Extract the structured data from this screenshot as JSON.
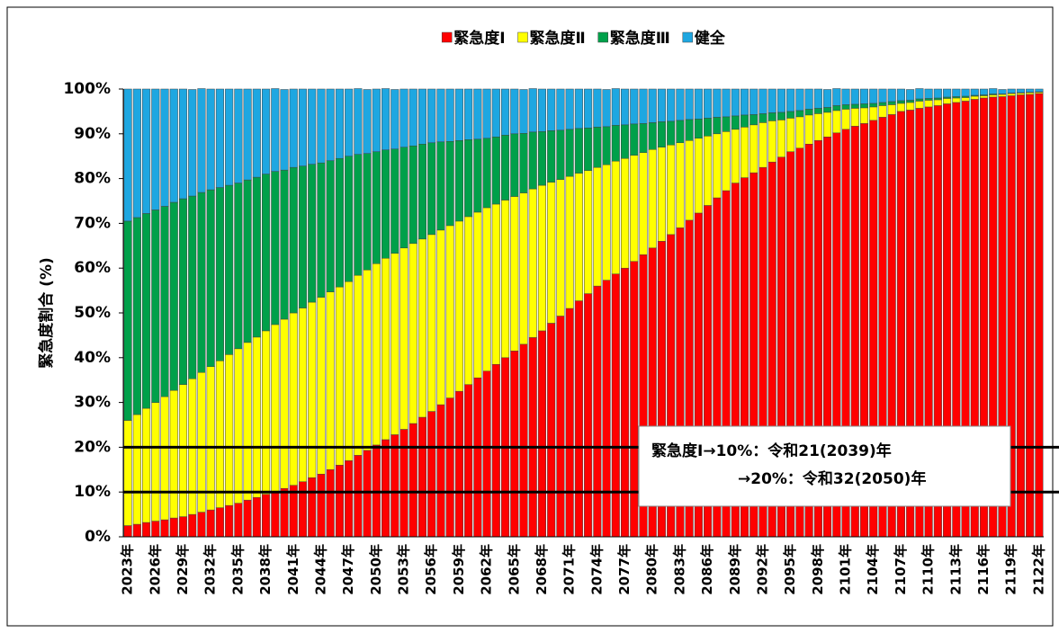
{
  "chart_data": {
    "type": "stacked-bar",
    "y_label": "緊急度割合 (%)",
    "categories": [
      "2023年",
      null,
      null,
      "2026年",
      null,
      null,
      "2029年",
      null,
      null,
      "2032年",
      null,
      null,
      "2035年",
      null,
      null,
      "2038年",
      null,
      null,
      "2041年",
      null,
      null,
      "2044年",
      null,
      null,
      "2047年",
      null,
      null,
      "2050年",
      null,
      null,
      "2053年",
      null,
      null,
      "2056年",
      null,
      null,
      "2059年",
      null,
      null,
      "2062年",
      null,
      null,
      "2065年",
      null,
      null,
      "2068年",
      null,
      null,
      "2071年",
      null,
      null,
      "2074年",
      null,
      null,
      "2077年",
      null,
      null,
      "2080年",
      null,
      null,
      "2083年",
      null,
      null,
      "2086年",
      null,
      null,
      "2089年",
      null,
      null,
      "2092年",
      null,
      null,
      "2095年",
      null,
      null,
      "2098年",
      null,
      null,
      "2101年",
      null,
      null,
      "2104年",
      null,
      null,
      "2107年",
      null,
      null,
      "2110年",
      null,
      null,
      "2113年",
      null,
      null,
      "2116年",
      null,
      null,
      "2119年",
      null,
      null,
      "2122年"
    ],
    "series": [
      {
        "name": "緊急度Ⅰ",
        "color": "#ff0000",
        "values": [
          2.5,
          2.8,
          3.2,
          3.5,
          3.8,
          4.2,
          4.5,
          5,
          5.5,
          6,
          6.5,
          7,
          7.5,
          8.2,
          8.8,
          9.5,
          10.2,
          10.8,
          11.5,
          12.3,
          13.2,
          14,
          15,
          16,
          17,
          18.2,
          19.3,
          20.5,
          21.7,
          22.8,
          24,
          25.3,
          26.7,
          28,
          29.5,
          31,
          32.5,
          34,
          35.5,
          37,
          38.5,
          40,
          41.5,
          43,
          44.5,
          46,
          47.7,
          49.3,
          51,
          52.7,
          54.3,
          56,
          57.3,
          58.7,
          60,
          61.5,
          63,
          64.5,
          66,
          67.5,
          69,
          70.7,
          72.3,
          74,
          75.7,
          77.3,
          79,
          80.2,
          81.3,
          82.5,
          83.7,
          84.8,
          86,
          86.8,
          87.7,
          88.5,
          89.3,
          90.2,
          91,
          91.7,
          92.3,
          93,
          93.7,
          94.3,
          95,
          95.3,
          95.7,
          96,
          96.3,
          96.7,
          97,
          97.3,
          97.7,
          98,
          98.2,
          98.3,
          98.5,
          98.7,
          98.8,
          99
        ]
      },
      {
        "name": "緊急度Ⅱ",
        "color": "#ffff00",
        "values": [
          23.5,
          24.5,
          25.5,
          26.5,
          27.5,
          28.5,
          29.5,
          30.3,
          31.2,
          32,
          32.8,
          33.7,
          34.5,
          35.2,
          35.8,
          36.5,
          37.2,
          37.8,
          38.5,
          38.8,
          39.2,
          39.5,
          39.7,
          39.8,
          40,
          40.2,
          40.3,
          40.5,
          40.5,
          40.5,
          40.5,
          40.2,
          39.8,
          39.5,
          39,
          38.5,
          38,
          37.5,
          37,
          36.5,
          35.8,
          35.2,
          34.5,
          33.8,
          33.2,
          32.5,
          31.5,
          30.5,
          29.5,
          28.5,
          27.5,
          26.5,
          25.8,
          25.2,
          24.5,
          23.7,
          22.8,
          22,
          21,
          20,
          19,
          17.8,
          16.7,
          15.5,
          14.3,
          13.2,
          12,
          11.3,
          10.7,
          10,
          9.2,
          8.3,
          7.5,
          7,
          6.5,
          6,
          5.5,
          5,
          4.5,
          4,
          3.5,
          3,
          2.6,
          2.2,
          1.8,
          1.7,
          1.6,
          1.5,
          1.3,
          1.2,
          1,
          0.8,
          0.7,
          0.5,
          0.5,
          0.5,
          0.5,
          0.4,
          0.4,
          0.3
        ]
      },
      {
        "name": "緊急度Ⅲ",
        "color": "#00a04a",
        "values": [
          44.5,
          44,
          43.5,
          43,
          42.5,
          42,
          41.5,
          40.8,
          40.2,
          39.5,
          38.7,
          37.8,
          37,
          36.3,
          35.7,
          35,
          34.2,
          33.3,
          32.5,
          31.7,
          30.8,
          30,
          29.3,
          28.7,
          28,
          27,
          26,
          25,
          24.2,
          23.3,
          22.5,
          21.8,
          21.2,
          20.5,
          19.7,
          18.8,
          18,
          17.2,
          16.3,
          15.5,
          15,
          14.5,
          14,
          13.3,
          12.7,
          12,
          11.5,
          11,
          10.5,
          10,
          9.5,
          9,
          8.5,
          8,
          7.5,
          7,
          6.5,
          6,
          5.7,
          5.3,
          5,
          4.7,
          4.3,
          4,
          3.7,
          3.3,
          3,
          2.7,
          2.3,
          2,
          1.8,
          1.7,
          1.5,
          1.4,
          1.3,
          1.2,
          1.1,
          1.1,
          1,
          0.9,
          0.9,
          0.8,
          0.7,
          0.7,
          0.6,
          0.5,
          0.5,
          0.4,
          0.4,
          0.3,
          0.3,
          0.3,
          0.2,
          0.2,
          0.2,
          0.1,
          0.1,
          0.1,
          0.1,
          0.1
        ]
      },
      {
        "name": "健全",
        "color": "#1ea7e1",
        "values": [
          29.5,
          28.7,
          27.8,
          27,
          26.2,
          25.3,
          24.5,
          23.8,
          23.2,
          22.5,
          22,
          21.5,
          21,
          20.3,
          19.7,
          19,
          18.5,
          18,
          17.5,
          17.2,
          16.8,
          16.5,
          16,
          15.5,
          15,
          14.7,
          14.3,
          14,
          13.7,
          13.3,
          13,
          12.7,
          12.3,
          12,
          11.8,
          11.7,
          11.5,
          11.3,
          11.2,
          11,
          10.7,
          10.3,
          10,
          9.8,
          9.7,
          9.5,
          9.3,
          9.2,
          9,
          8.8,
          8.7,
          8.5,
          8.3,
          8.2,
          8,
          7.8,
          7.7,
          7.5,
          7.3,
          7.2,
          7,
          6.8,
          6.7,
          6.5,
          6.3,
          6.2,
          6,
          5.8,
          5.7,
          5.5,
          5.3,
          5.2,
          5,
          4.8,
          4.5,
          4.3,
          4,
          3.8,
          3.5,
          3.4,
          3.3,
          3.2,
          3,
          2.8,
          2.6,
          2.4,
          2.3,
          2.1,
          2,
          1.8,
          1.7,
          1.6,
          1.4,
          1.3,
          1.2,
          1,
          0.9,
          0.8,
          0.7,
          0.6
        ]
      }
    ],
    "ylim": [
      0,
      100
    ],
    "yticks": [
      {
        "value": 0,
        "label": "0%"
      },
      {
        "value": 10,
        "label": "10%"
      },
      {
        "value": 20,
        "label": "20%"
      },
      {
        "value": 30,
        "label": "30%"
      },
      {
        "value": 40,
        "label": "40%"
      },
      {
        "value": 50,
        "label": "50%"
      },
      {
        "value": 60,
        "label": "60%"
      },
      {
        "value": 70,
        "label": "70%"
      },
      {
        "value": 80,
        "label": "80%"
      },
      {
        "value": 90,
        "label": "90%"
      },
      {
        "value": 100,
        "label": "100%"
      }
    ],
    "reference_lines": [
      10,
      20
    ],
    "annotations": [
      "緊急度Ⅰ→10%：令和21(2039)年",
      "→20%：令和32(2050)年"
    ],
    "legend": "top"
  }
}
